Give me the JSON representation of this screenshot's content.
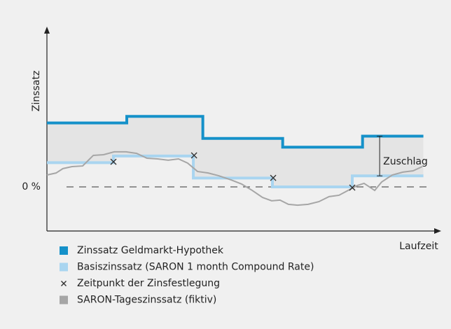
{
  "chart_data": {
    "type": "line",
    "ylabel": "Zinssatz",
    "xlabel": "Laufzeit",
    "annotation": "Zuschlag",
    "xlim": [
      0,
      100
    ],
    "ylim": [
      -2,
      7
    ],
    "yticks": [
      {
        "value": 0,
        "label": "0 %"
      }
    ],
    "series": [
      {
        "name": "Zinssatz Geldmarkt-Hypothek",
        "color": "#1591c9",
        "width": 4,
        "x": [
          0,
          21,
          21,
          41,
          41,
          62,
          62,
          83,
          83,
          99
        ],
        "values": [
          2.9,
          2.9,
          3.2,
          3.2,
          2.2,
          2.2,
          1.8,
          1.8,
          2.3,
          2.3
        ]
      },
      {
        "name": "Basiszinssatz (SARON 1 month Compound Rate)",
        "color": "#a9d5f0",
        "width": 4,
        "x": [
          0,
          17.5,
          17.5,
          38.5,
          38.5,
          59.3,
          59.3,
          80.3,
          80.3,
          99
        ],
        "values": [
          1.1,
          1.1,
          1.4,
          1.4,
          0.4,
          0.4,
          0,
          0,
          0.5,
          0.5
        ]
      },
      {
        "name": "Zeitpunkt der Zinsfestlegung",
        "color": "#333333",
        "marker": "x",
        "x": [
          17.5,
          38.7,
          59.5,
          80.3
        ],
        "values": [
          1.14,
          1.43,
          0.41,
          -0.03
        ]
      },
      {
        "name": "SARON-Tageszinssatz (fiktiv)",
        "color": "#a6a6a6",
        "width": 2,
        "x": [
          0,
          2.4,
          4.2,
          6.6,
          9.4,
          12.2,
          14.9,
          17.7,
          20.8,
          23.6,
          26.3,
          29.1,
          31.9,
          34.6,
          37,
          39.6,
          42.4,
          45.1,
          48.4,
          51.2,
          54,
          56.7,
          59.1,
          61.3,
          63.5,
          65.9,
          68.7,
          71.5,
          74.2,
          76.8,
          79.2,
          81.6,
          83.4,
          86.2,
          88,
          90.8,
          93.6,
          96.3,
          98.7
        ],
        "values": [
          0.54,
          0.63,
          0.83,
          0.92,
          0.95,
          1.43,
          1.46,
          1.59,
          1.59,
          1.52,
          1.3,
          1.27,
          1.21,
          1.27,
          1.08,
          0.7,
          0.63,
          0.51,
          0.32,
          0.13,
          -0.16,
          -0.48,
          -0.63,
          -0.6,
          -0.79,
          -0.83,
          -0.79,
          -0.67,
          -0.44,
          -0.38,
          -0.16,
          0.06,
          0.16,
          -0.16,
          0.22,
          0.54,
          0.67,
          0.73,
          0.92
        ]
      }
    ]
  }
}
